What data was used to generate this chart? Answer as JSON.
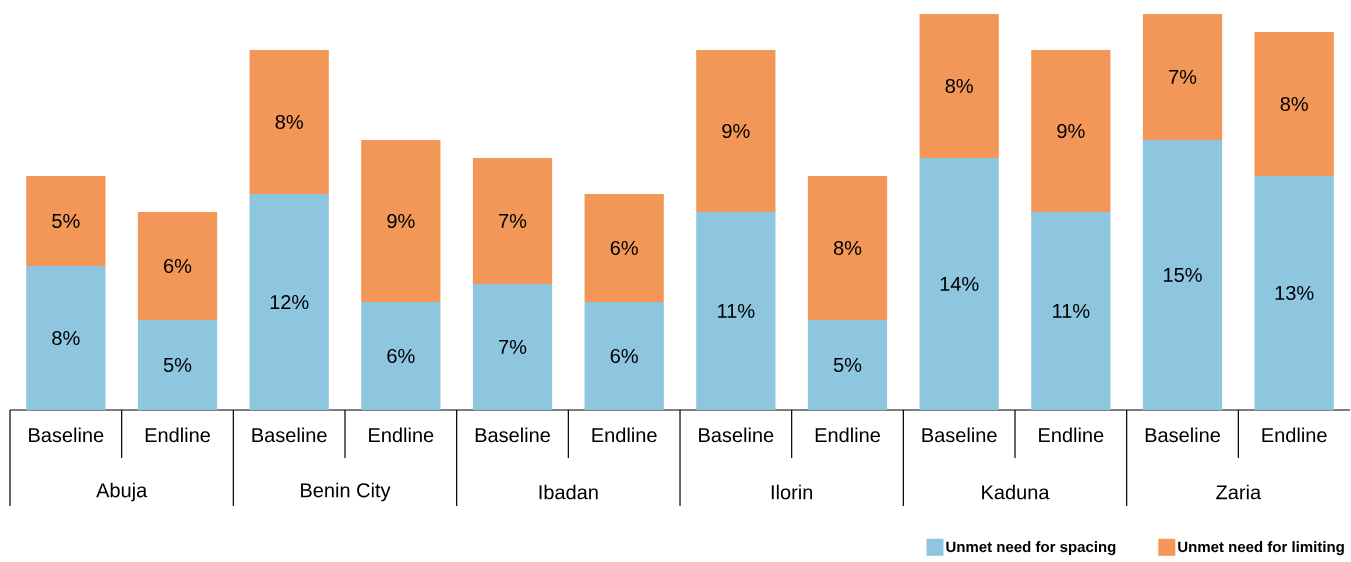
{
  "chart_data": {
    "type": "bar",
    "stacked": true,
    "legend": "bottom right",
    "categories": [
      "Baseline",
      "Endline",
      "Baseline",
      "Endline",
      "Baseline",
      "Endline",
      "Baseline",
      "Endline",
      "Baseline",
      "Endline",
      "Baseline",
      "Endline"
    ],
    "annotations": [
      "Abuja",
      "Benin City",
      "Ibadan",
      "Ilorin",
      "Kaduna",
      "Zaria"
    ],
    "series": [
      {
        "name": "Unmet need for spacing",
        "color": "#8ec6e0",
        "values": [
          8,
          5,
          12,
          6,
          7,
          6,
          11,
          5,
          14,
          11,
          15,
          13
        ],
        "value_labels": [
          "8%",
          "5%",
          "12%",
          "6%",
          "7%",
          "6%",
          "11%",
          "5%",
          "14%",
          "11%",
          "15%",
          "13%"
        ]
      },
      {
        "name": "Unmet need for limiting",
        "color": "#f29757",
        "values": [
          5,
          6,
          8,
          9,
          7,
          6,
          9,
          8,
          8,
          9,
          7,
          8
        ],
        "value_labels": [
          "5%",
          "6%",
          "8%",
          "9%",
          "7%",
          "6%",
          "9%",
          "8%",
          "8%",
          "9%",
          "7%",
          "8%"
        ]
      }
    ]
  }
}
